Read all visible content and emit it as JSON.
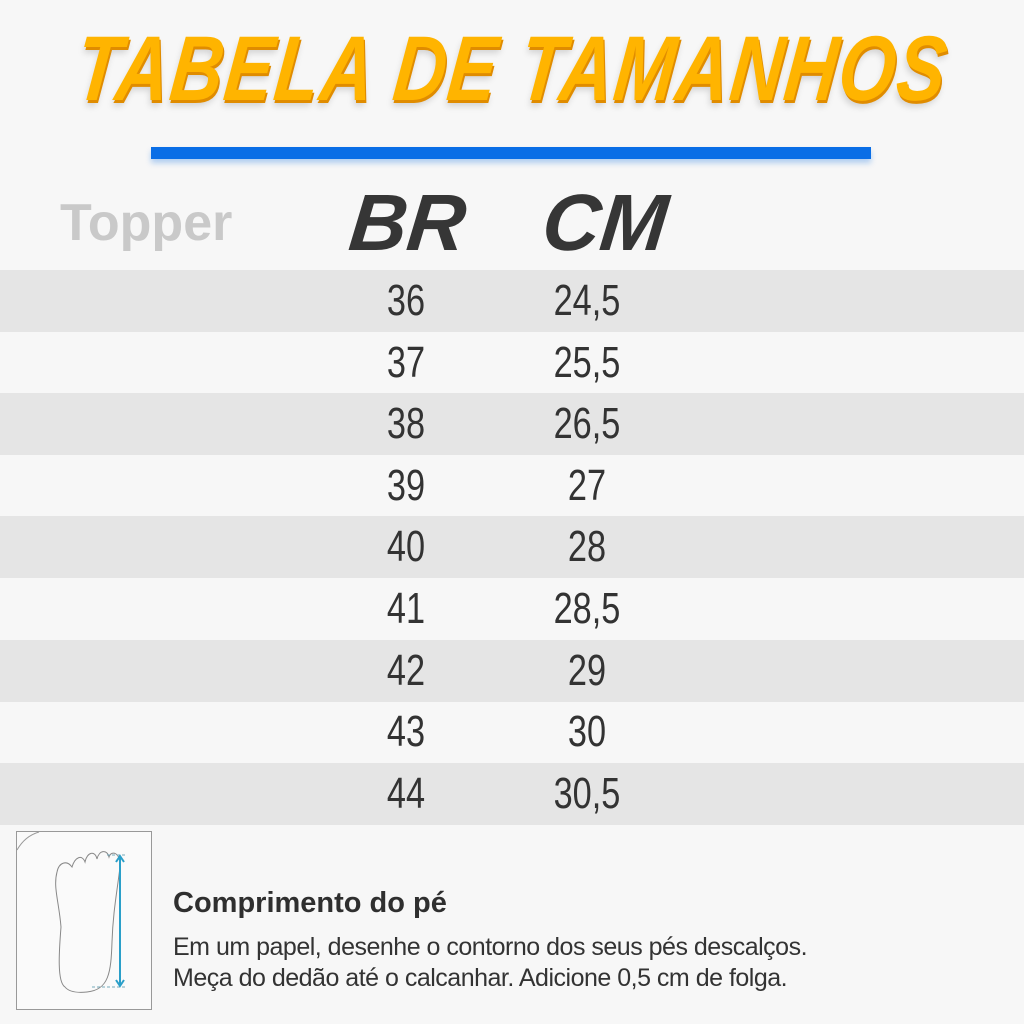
{
  "title": "TABELA DE TAMANHOS",
  "brand": "Topper",
  "accent_color": "#ffb400",
  "divider_color": "#0a6ee6",
  "headers": {
    "br": "BR",
    "cm": "CM"
  },
  "rows": [
    {
      "br": "36",
      "cm": "24,5"
    },
    {
      "br": "37",
      "cm": "25,5"
    },
    {
      "br": "38",
      "cm": "26,5"
    },
    {
      "br": "39",
      "cm": "27"
    },
    {
      "br": "40",
      "cm": "28"
    },
    {
      "br": "41",
      "cm": "28,5"
    },
    {
      "br": "42",
      "cm": "29"
    },
    {
      "br": "43",
      "cm": "30"
    },
    {
      "br": "44",
      "cm": "30,5"
    }
  ],
  "note": {
    "icon": "foot-measure-icon",
    "title": "Comprimento do pé",
    "line1": "Em um papel, desenhe o contorno dos seus pés descalços.",
    "line2": "Meça do dedão até o calcanhar. Adicione 0,5 cm de folga."
  }
}
